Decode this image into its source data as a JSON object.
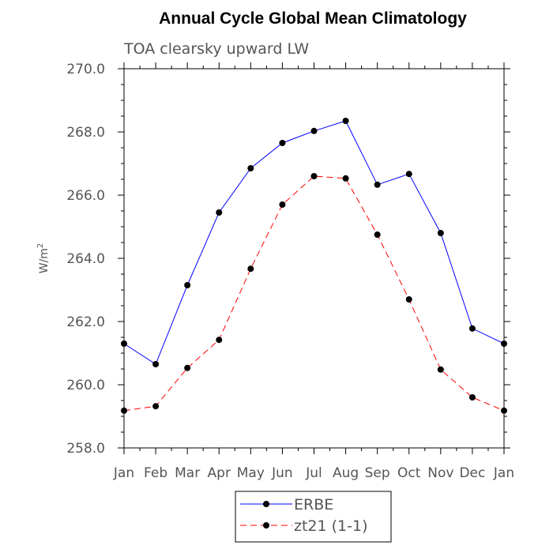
{
  "chart_data": {
    "type": "line",
    "title": "Annual Cycle Global Mean Climatology",
    "subtitle": "TOA clearsky upward LW",
    "ylabel_base": "W/m",
    "ylabel_sup": "2",
    "ylim": [
      258.0,
      270.0
    ],
    "yticks": [
      "258.0",
      "260.0",
      "262.0",
      "264.0",
      "266.0",
      "268.0",
      "270.0"
    ],
    "categories": [
      "Jan",
      "Feb",
      "Mar",
      "Apr",
      "May",
      "Jun",
      "Jul",
      "Aug",
      "Sep",
      "Oct",
      "Nov",
      "Dec",
      "Jan"
    ],
    "grid": false,
    "legend_position": "bottom-center",
    "series": [
      {
        "name": "ERBE",
        "color": "#0000ff",
        "dashed": false,
        "values": [
          261.3,
          260.65,
          263.15,
          265.45,
          266.85,
          267.65,
          268.03,
          268.35,
          266.33,
          266.67,
          264.8,
          261.78,
          261.3
        ]
      },
      {
        "name": "zt21 (1-1)",
        "color": "#ff0000",
        "dashed": true,
        "values": [
          259.18,
          259.32,
          260.53,
          261.42,
          263.67,
          265.7,
          266.6,
          266.53,
          264.75,
          262.7,
          260.48,
          259.6,
          259.18
        ]
      }
    ]
  }
}
